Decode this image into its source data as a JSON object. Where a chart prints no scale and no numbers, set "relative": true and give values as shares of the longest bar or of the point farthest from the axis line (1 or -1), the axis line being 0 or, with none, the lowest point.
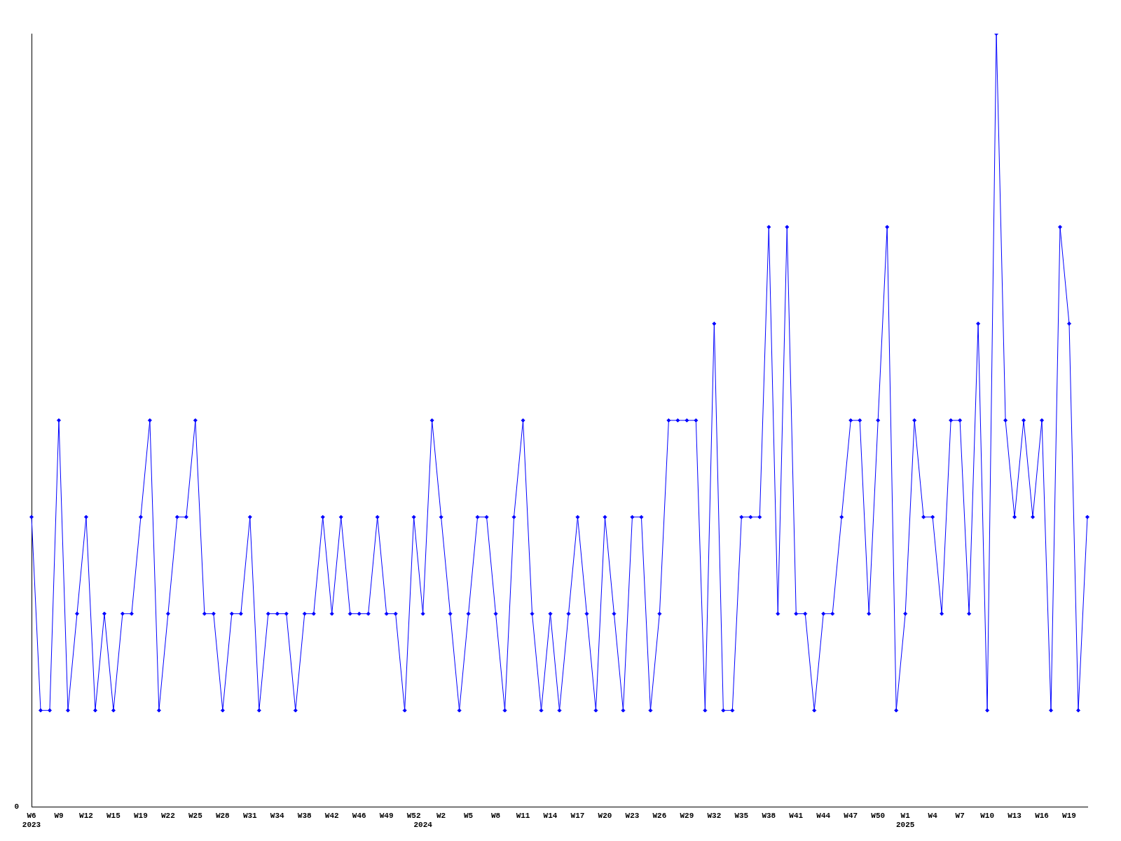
{
  "chart_data": {
    "type": "line",
    "relative": true,
    "categories": [
      "W6\n2023",
      null,
      null,
      "W9",
      null,
      null,
      "W12",
      null,
      null,
      "W15",
      null,
      null,
      "W19",
      null,
      null,
      "W22",
      null,
      null,
      "W25",
      null,
      null,
      "W28",
      null,
      null,
      "W31",
      null,
      null,
      "W34",
      null,
      null,
      "W38",
      null,
      null,
      "W42",
      null,
      null,
      "W46",
      null,
      null,
      "W49",
      null,
      null,
      "W52",
      "\n2024",
      null,
      "W2",
      null,
      null,
      "W5",
      null,
      null,
      "W8",
      null,
      null,
      "W11",
      null,
      null,
      "W14",
      null,
      null,
      "W17",
      null,
      null,
      "W20",
      null,
      null,
      "W23",
      null,
      null,
      "W26",
      null,
      null,
      "W29",
      null,
      null,
      "W32",
      null,
      null,
      "W35",
      null,
      null,
      "W38",
      null,
      null,
      "W41",
      null,
      null,
      "W44",
      null,
      null,
      "W47",
      null,
      null,
      "W50",
      null,
      null,
      "W1\n2025",
      null,
      null,
      "W4",
      null,
      null,
      "W7",
      null,
      null,
      "W10",
      null,
      null,
      "W13",
      null,
      null,
      "W16",
      null,
      null,
      "W19",
      null,
      null
    ],
    "series": [
      {
        "color": "#0000ff",
        "values": [
          0.375,
          0.125,
          0.125,
          0.5,
          0.125,
          0.25,
          0.375,
          0.125,
          0.25,
          0.125,
          0.25,
          0.25,
          0.375,
          0.5,
          0.125,
          0.25,
          0.375,
          0.375,
          0.5,
          0.25,
          0.25,
          0.125,
          0.25,
          0.25,
          0.375,
          0.125,
          0.25,
          0.25,
          0.25,
          0.125,
          0.25,
          0.25,
          0.375,
          0.25,
          0.375,
          0.25,
          0.25,
          0.25,
          0.375,
          0.25,
          0.25,
          0.125,
          0.375,
          0.25,
          0.5,
          0.375,
          0.25,
          0.125,
          0.25,
          0.375,
          0.375,
          0.25,
          0.125,
          0.375,
          0.5,
          0.25,
          0.125,
          0.25,
          0.125,
          0.25,
          0.375,
          0.25,
          0.125,
          0.375,
          0.25,
          0.125,
          0.375,
          0.375,
          0.125,
          0.25,
          0.5,
          0.5,
          0.5,
          0.5,
          0.125,
          0.625,
          0.125,
          0.125,
          0.375,
          0.375,
          0.375,
          0.75,
          0.25,
          0.75,
          0.25,
          0.25,
          0.125,
          0.25,
          0.25,
          0.375,
          0.5,
          0.5,
          0.25,
          0.5,
          0.75,
          0.125,
          0.25,
          0.5,
          0.375,
          0.375,
          0.25,
          0.5,
          0.5,
          0.25,
          0.625,
          0.125,
          1,
          0.5,
          0.375,
          0.5,
          0.375,
          0.5,
          0.125,
          0.75,
          0.625,
          0.125,
          0.375
        ]
      }
    ],
    "annotations": [
      "0"
    ],
    "marker": "diamond",
    "grid": false,
    "legend": false
  }
}
